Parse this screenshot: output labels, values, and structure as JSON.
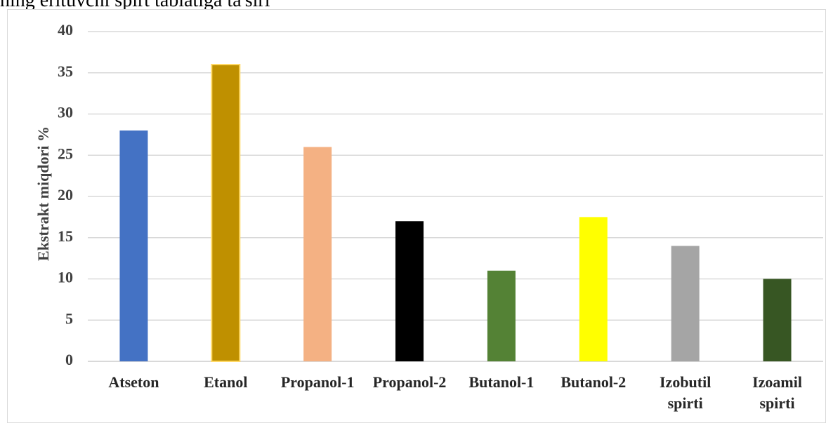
{
  "page": {
    "cut_text": "ning erituvchi spirt tabiatiga ta'siri"
  },
  "chart_data": {
    "type": "bar",
    "title": "",
    "xlabel": "",
    "ylabel": "Ekstrakt miqdori %",
    "ylim": [
      0,
      40
    ],
    "yticks": [
      0,
      5,
      10,
      15,
      20,
      25,
      30,
      35,
      40
    ],
    "grid": true,
    "categories": [
      [
        "Atseton"
      ],
      [
        "Etanol"
      ],
      [
        "Propanol-1"
      ],
      [
        "Propanol-2"
      ],
      [
        "Butanol-1"
      ],
      [
        "Butanol-2"
      ],
      [
        "Izobutil",
        "spirti"
      ],
      [
        "Izoamil",
        "spirti"
      ]
    ],
    "values": [
      28,
      36,
      26,
      17,
      11,
      17.5,
      14,
      10
    ],
    "colors": [
      "#4472c4",
      "#bf9000",
      "#f4b183",
      "#000000",
      "#548235",
      "#ffff00",
      "#a5a5a5",
      "#375623"
    ]
  }
}
